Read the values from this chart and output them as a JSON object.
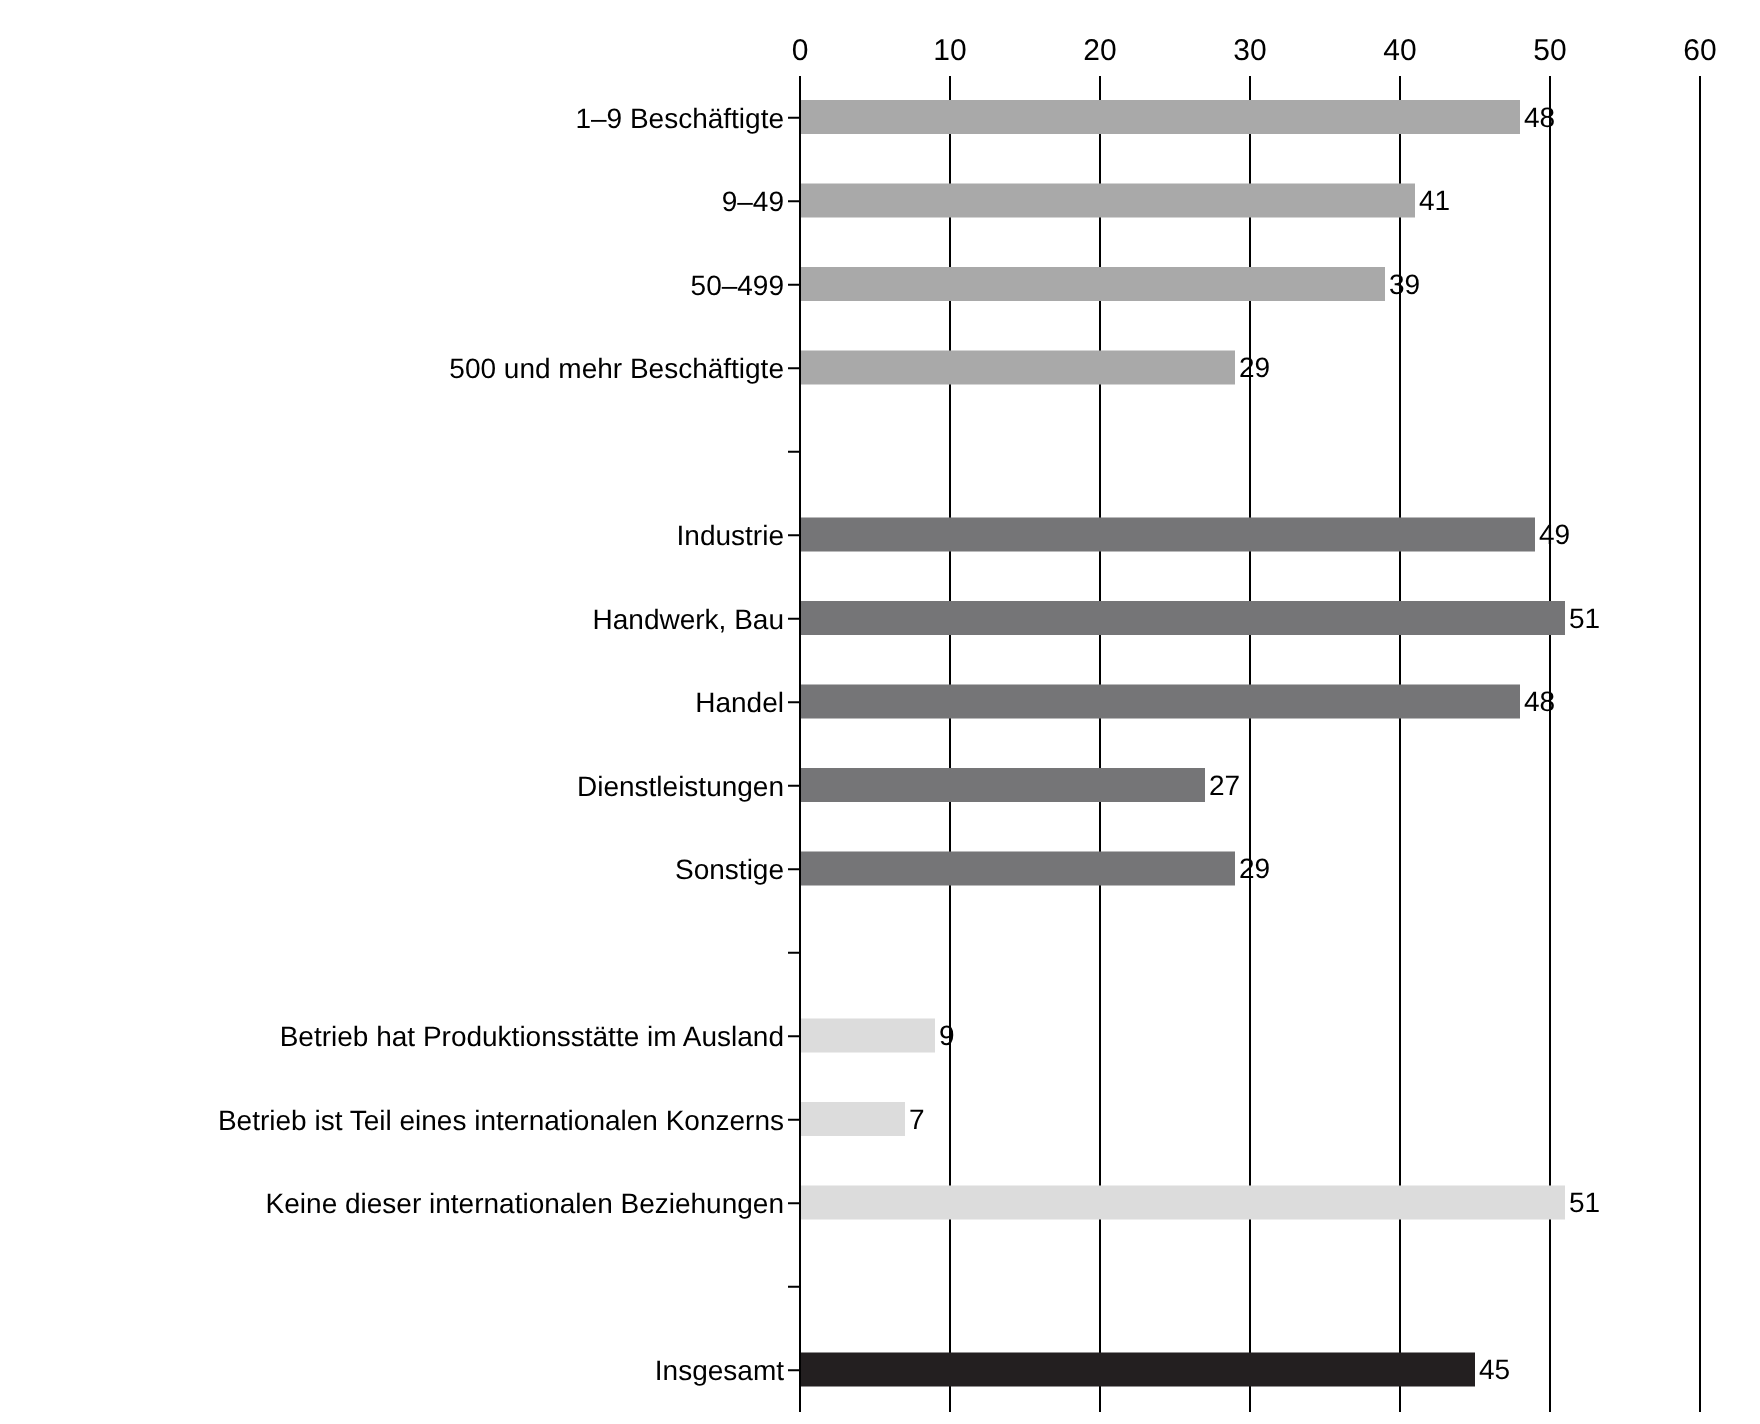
{
  "chart_data": {
    "type": "bar",
    "orientation": "horizontal",
    "categories": [
      "1–9 Beschäftigte",
      "9–49",
      "50–499",
      "500 und mehr Beschäftigte",
      null,
      "Industrie",
      "Handwerk, Bau",
      "Handel",
      "Dienstleistungen",
      "Sonstige",
      null,
      "Betrieb hat Produktionsstätte im Ausland",
      "Betrieb ist Teil eines internationalen Konzerns",
      "Keine dieser internationalen Beziehungen",
      null,
      "Insgesamt"
    ],
    "values": [
      48,
      41,
      39,
      29,
      null,
      49,
      51,
      48,
      27,
      29,
      null,
      9,
      7,
      51,
      null,
      45
    ],
    "colors": [
      "#a9a9a9",
      "#a9a9a9",
      "#a9a9a9",
      "#a9a9a9",
      null,
      "#757577",
      "#757577",
      "#757577",
      "#757577",
      "#757577",
      null,
      "#dcdcdc",
      "#dcdcdc",
      "#dcdcdc",
      null,
      "#231f20"
    ],
    "xlim": [
      0,
      60
    ],
    "xticks": [
      0,
      10,
      20,
      30,
      40,
      50,
      60
    ],
    "grid": "x",
    "data_labels": true
  }
}
